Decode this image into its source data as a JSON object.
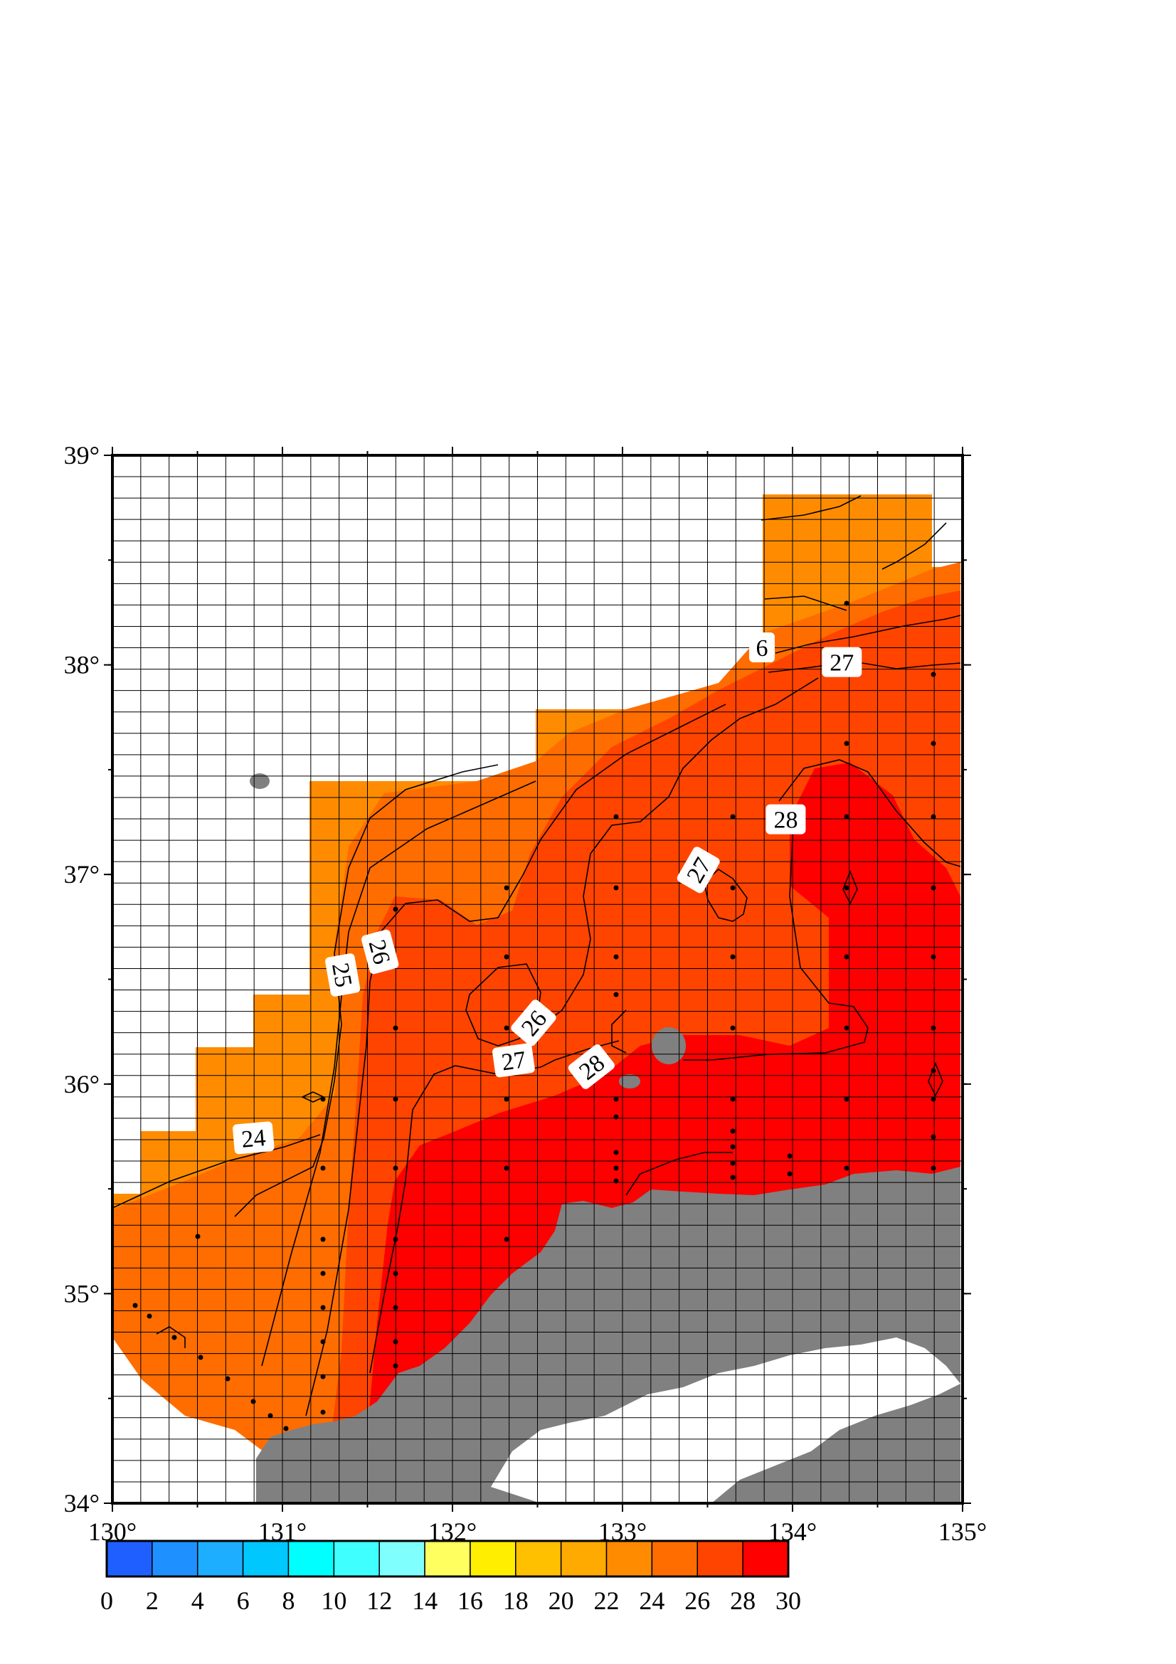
{
  "map": {
    "lon_range": [
      130,
      135
    ],
    "lat_range": [
      34,
      39
    ],
    "x_ticks": [
      "130°",
      "131°",
      "132°",
      "133°",
      "134°",
      "135°"
    ],
    "y_ticks": [
      "34°",
      "35°",
      "36°",
      "37°",
      "38°",
      "39°"
    ],
    "grid": true,
    "colors": {
      "land": "#808080",
      "frame": "#000000",
      "grid": "#000000",
      "c22_24": "#ff8c00",
      "c24_26": "#ff6d00",
      "c26_28": "#ff4400",
      "c28_30": "#ff0000"
    },
    "contour_labels": [
      {
        "text": "24",
        "lon": 130.83,
        "lat": 35.74,
        "angle": -5
      },
      {
        "text": "25",
        "lon": 131.35,
        "lat": 36.52,
        "angle": 80
      },
      {
        "text": "26",
        "lon": 131.57,
        "lat": 36.63,
        "angle": 75
      },
      {
        "text": "26",
        "lon": 132.48,
        "lat": 36.29,
        "angle": -50
      },
      {
        "text": "27",
        "lon": 132.36,
        "lat": 36.11,
        "angle": -8
      },
      {
        "text": "28",
        "lon": 132.82,
        "lat": 36.08,
        "angle": -38
      },
      {
        "text": "27",
        "lon": 133.45,
        "lat": 37.02,
        "angle": -60
      },
      {
        "text": "28",
        "lon": 133.96,
        "lat": 37.26,
        "angle": 0
      },
      {
        "text": "27",
        "lon": 134.29,
        "lat": 38.01,
        "angle": 0
      },
      {
        "text": "6",
        "lon": 133.82,
        "lat": 38.08,
        "angle": 0
      }
    ]
  },
  "colorbar": {
    "ticks": [
      "0",
      "2",
      "4",
      "6",
      "8",
      "10",
      "12",
      "14",
      "16",
      "18",
      "20",
      "22",
      "24",
      "26",
      "28",
      "30"
    ],
    "colors": [
      "#1f5fff",
      "#1e90ff",
      "#1eaeff",
      "#00c8ff",
      "#00ffff",
      "#40ffff",
      "#80ffff",
      "#ffff60",
      "#ffee00",
      "#ffc000",
      "#ffaa00",
      "#ff8c00",
      "#ff6d00",
      "#ff4400",
      "#ff0000"
    ]
  }
}
